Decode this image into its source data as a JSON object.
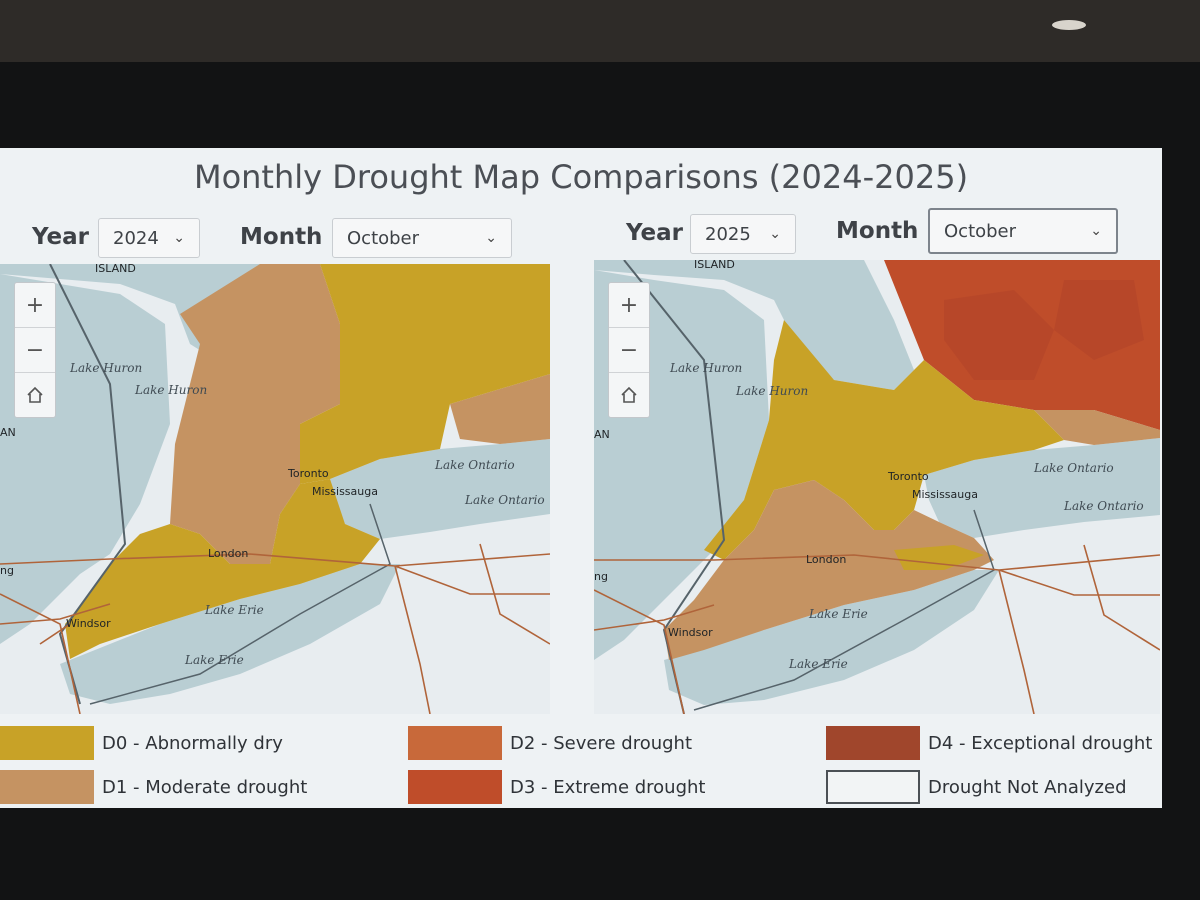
{
  "title": "Monthly Drought Map Comparisons (2024-2025)",
  "left_panel": {
    "year_label": "Year",
    "year_value": "2024",
    "month_label": "Month",
    "month_value": "October"
  },
  "right_panel": {
    "year_label": "Year",
    "year_value": "2025",
    "month_label": "Month",
    "month_value": "October"
  },
  "map_controls": {
    "zoom_in": "+",
    "zoom_out": "−"
  },
  "map_labels": {
    "island": "ISLAND",
    "lake_huron": "Lake Huron",
    "lake_ontario": "Lake Ontario",
    "lake_erie": "Lake Erie",
    "toronto": "Toronto",
    "mississauga": "Mississauga",
    "london": "London",
    "windsor": "Windsor",
    "ng": "ng",
    "an": "AN"
  },
  "legend": [
    {
      "label": "D0 - Abnormally dry",
      "color": "#c8a227"
    },
    {
      "label": "D1 - Moderate drought",
      "color": "#c59362"
    },
    {
      "label": "D2 - Severe drought",
      "color": "#c8693a"
    },
    {
      "label": "D3 - Extreme drought",
      "color": "#bf4d2a"
    },
    {
      "label": "D4 - Exceptional drought",
      "color": "#a0462c"
    },
    {
      "label": "Drought Not Analyzed",
      "color": "#f2f4f5"
    }
  ],
  "colors": {
    "water": "#b9ced3",
    "land_na": "#e8edf0",
    "d0": "#c8a227",
    "d1": "#c59362",
    "d3": "#bf4d2a"
  }
}
